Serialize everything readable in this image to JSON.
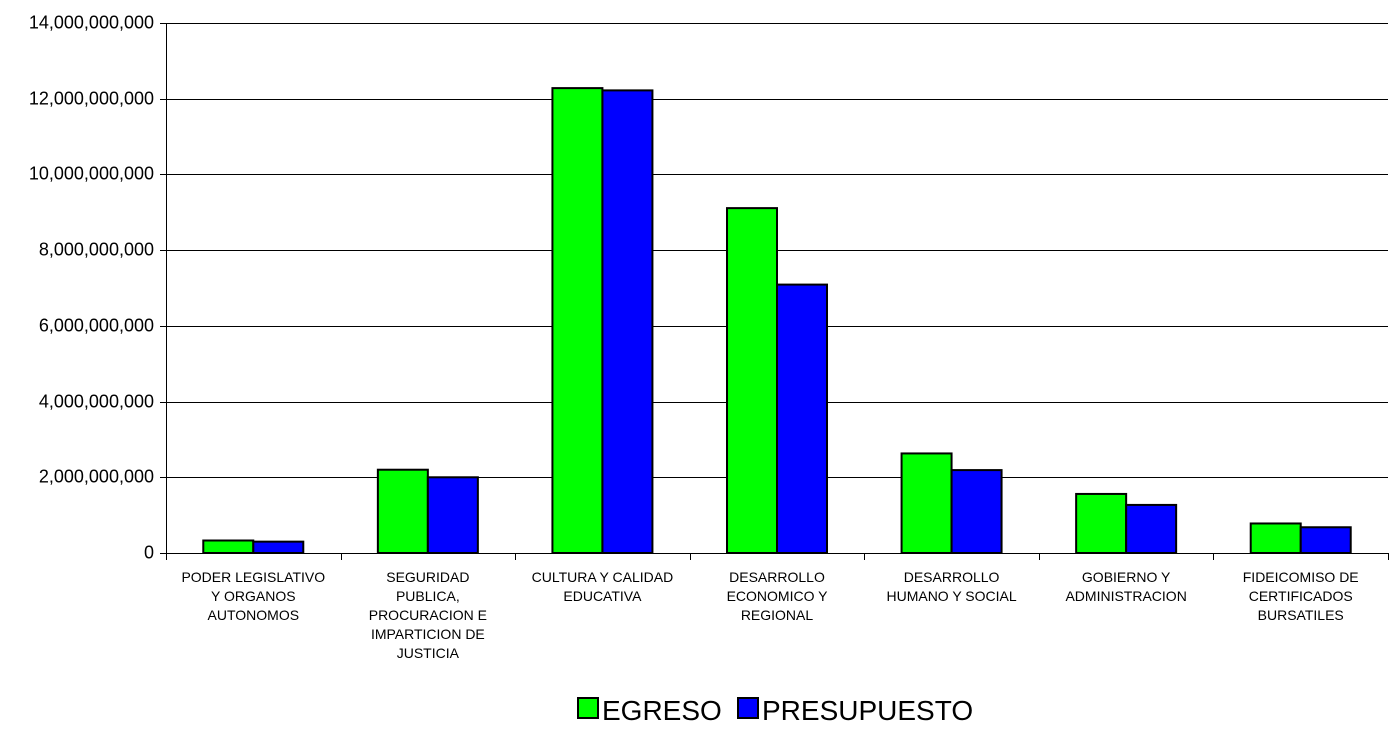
{
  "chart_data": {
    "type": "bar",
    "categories": [
      [
        "PODER LEGISLATIVO",
        "Y ORGANOS",
        "AUTONOMOS"
      ],
      [
        "SEGURIDAD",
        "PUBLICA,",
        "PROCURACION E",
        "IMPARTICION DE",
        "JUSTICIA"
      ],
      [
        "CULTURA Y CALIDAD",
        "EDUCATIVA"
      ],
      [
        "DESARROLLO",
        "ECONOMICO Y",
        "REGIONAL"
      ],
      [
        "DESARROLLO",
        "HUMANO Y SOCIAL"
      ],
      [
        "GOBIERNO Y",
        "ADMINISTRACION"
      ],
      [
        "FIDEICOMISO DE",
        "CERTIFICADOS",
        "BURSATILES"
      ]
    ],
    "series": [
      {
        "name": "EGRESO",
        "color": "#00ff00",
        "values": [
          330000000,
          2200000000,
          12280000000,
          9110000000,
          2630000000,
          1560000000,
          780000000
        ]
      },
      {
        "name": "PRESUPUESTO",
        "color": "#0000ff",
        "values": [
          300000000,
          2000000000,
          12220000000,
          7090000000,
          2190000000,
          1270000000,
          680000000
        ]
      }
    ],
    "ylim": [
      0,
      14000000000
    ],
    "yticks": [
      "0",
      "2,000,000,000",
      "4,000,000,000",
      "6,000,000,000",
      "8,000,000,000",
      "10,000,000,000",
      "12,000,000,000",
      "14,000,000,000"
    ],
    "ytick_values": [
      0,
      2000000000,
      4000000000,
      6000000000,
      8000000000,
      10000000000,
      12000000000,
      14000000000
    ],
    "grid": true,
    "legend_position": "bottom-center",
    "title": "",
    "xlabel": "",
    "ylabel": ""
  }
}
